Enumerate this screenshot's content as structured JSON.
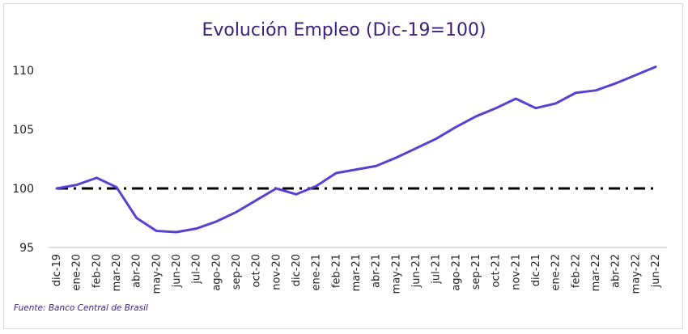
{
  "chart_data": {
    "type": "line",
    "title": "Evolución Empleo (Dic-19=100)",
    "xlabel": "",
    "ylabel": "",
    "ylim": [
      95,
      111
    ],
    "yticks": [
      95,
      100,
      105,
      110
    ],
    "grid": false,
    "categories": [
      "dic-19",
      "ene-20",
      "feb-20",
      "mar-20",
      "abr-20",
      "may-20",
      "jun-20",
      "jul-20",
      "ago-20",
      "sep-20",
      "oct-20",
      "nov-20",
      "dic-20",
      "ene-21",
      "feb-21",
      "mar-21",
      "abr-21",
      "may-21",
      "jun-21",
      "jul-21",
      "ago-21",
      "sep-21",
      "oct-21",
      "nov-21",
      "dic-21",
      "ene-22",
      "feb-22",
      "mar-22",
      "abr-22",
      "may-22",
      "jun-22"
    ],
    "series": [
      {
        "values": [
          100.0,
          100.3,
          100.9,
          100.1,
          97.5,
          96.4,
          96.3,
          96.6,
          97.2,
          98.0,
          99.0,
          100.0,
          99.5,
          100.2,
          101.3,
          101.6,
          101.9,
          102.6,
          103.4,
          104.2,
          105.2,
          106.1,
          106.8,
          107.6,
          106.8,
          107.2,
          108.1,
          108.3,
          108.9,
          109.6,
          110.3
        ],
        "color": "#5b3fd3"
      },
      {
        "values": [
          100,
          100,
          100,
          100,
          100,
          100,
          100,
          100,
          100,
          100,
          100,
          100,
          100,
          100,
          100,
          100,
          100,
          100,
          100,
          100,
          100,
          100,
          100,
          100,
          100,
          100,
          100,
          100,
          100,
          100,
          100
        ],
        "color": "#000000",
        "style": "dash-dot"
      }
    ]
  },
  "footer": {
    "source": "Fuente: Banco Central de Brasil"
  }
}
